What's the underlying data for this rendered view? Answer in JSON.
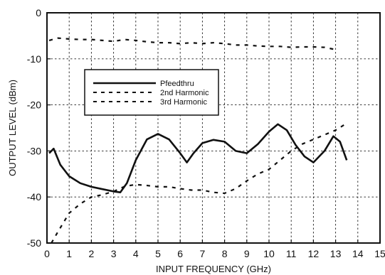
{
  "chart_data": {
    "type": "line",
    "title": "",
    "xlabel": "INPUT  FREQUENCY (GHz)",
    "ylabel": "OUTPUT LEVEL (dBm)",
    "xlim": [
      0,
      15
    ],
    "ylim": [
      -50,
      0
    ],
    "xticks": [
      "0",
      "1",
      "2",
      "3",
      "4",
      "5",
      "6",
      "7",
      "8",
      "9",
      "10",
      "11",
      "12",
      "13",
      "14",
      "15"
    ],
    "yticks": [
      "0",
      "-10",
      "-20",
      "-30",
      "-40",
      "-50"
    ],
    "grid": true,
    "legend_position": "upper-left",
    "series": [
      {
        "name": "Pfeedthru",
        "style": "solid",
        "color": "#111111",
        "x": [
          0.1,
          0.3,
          0.6,
          1.0,
          1.5,
          2.0,
          2.5,
          3.0,
          3.3,
          3.6,
          4.0,
          4.5,
          5.0,
          5.5,
          6.0,
          6.3,
          6.6,
          7.0,
          7.5,
          8.0,
          8.5,
          9.0,
          9.5,
          10.0,
          10.4,
          10.8,
          11.2,
          11.6,
          12.0,
          12.5,
          12.9,
          13.2,
          13.5
        ],
        "y": [
          -30.5,
          -29.5,
          -33.0,
          -35.5,
          -37.0,
          -37.8,
          -38.3,
          -38.8,
          -39.0,
          -37.0,
          -32.0,
          -27.5,
          -26.3,
          -27.5,
          -30.5,
          -32.5,
          -30.5,
          -28.3,
          -27.6,
          -28.0,
          -30.0,
          -30.5,
          -28.5,
          -25.8,
          -24.2,
          -25.5,
          -28.7,
          -31.2,
          -32.5,
          -30.0,
          -26.8,
          -28.0,
          -32.0
        ]
      },
      {
        "name": "2nd Harmonic",
        "style": "dashed",
        "color": "#111111",
        "x": [
          0.1,
          0.5,
          1.0,
          1.5,
          2.0,
          2.5,
          3.0,
          3.5,
          4.0,
          4.5,
          5.0,
          5.5,
          6.0,
          6.5,
          7.0,
          7.5,
          8.0,
          8.5,
          9.0,
          9.5,
          10.0,
          10.5,
          11.0,
          11.5,
          12.0,
          12.5,
          13.0
        ],
        "y": [
          -6.0,
          -5.5,
          -5.7,
          -5.8,
          -5.8,
          -6.0,
          -6.2,
          -5.8,
          -6.0,
          -6.3,
          -6.5,
          -6.5,
          -6.7,
          -6.5,
          -6.7,
          -6.5,
          -6.7,
          -7.0,
          -7.0,
          -7.2,
          -7.3,
          -7.3,
          -7.5,
          -7.4,
          -7.4,
          -7.5,
          -8.0
        ]
      },
      {
        "name": "3rd Harmonic",
        "style": "dashed",
        "color": "#111111",
        "x": [
          0.2,
          0.5,
          1.0,
          1.5,
          2.0,
          2.5,
          3.0,
          3.5,
          4.0,
          4.5,
          5.0,
          5.5,
          6.0,
          6.5,
          7.0,
          7.5,
          8.0,
          8.5,
          9.0,
          9.5,
          10.0,
          10.5,
          11.0,
          11.5,
          12.0,
          12.5,
          13.0,
          13.5
        ],
        "y": [
          -50.0,
          -47.5,
          -43.5,
          -41.5,
          -40.0,
          -39.5,
          -38.8,
          -37.7,
          -37.3,
          -37.5,
          -37.8,
          -37.8,
          -38.2,
          -38.5,
          -38.5,
          -39.0,
          -39.2,
          -38.2,
          -36.5,
          -35.0,
          -34.0,
          -32.0,
          -30.0,
          -28.5,
          -27.5,
          -26.5,
          -25.5,
          -24.0
        ]
      }
    ]
  }
}
